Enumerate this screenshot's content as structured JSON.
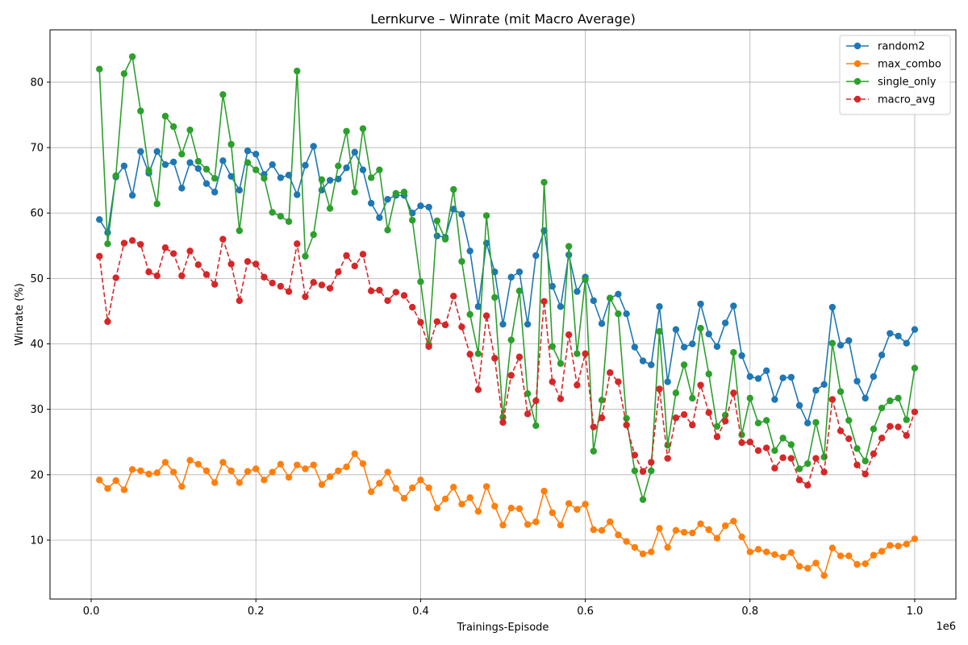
{
  "chart_data": {
    "type": "line",
    "title": "Lernkurve – Winrate (mit Macro Average)",
    "xlabel": "Trainings-Episode",
    "ylabel": "Winrate (%)",
    "x_offset_label": "1e6",
    "xlim": [
      -0.05,
      1.05
    ],
    "ylim": [
      1,
      88
    ],
    "xticks": [
      0.0,
      0.2,
      0.4,
      0.6,
      0.8,
      1.0
    ],
    "xtick_labels": [
      "0.0",
      "0.2",
      "0.4",
      "0.6",
      "0.8",
      "1.0"
    ],
    "yticks": [
      10,
      20,
      30,
      40,
      50,
      60,
      70,
      80
    ],
    "ytick_labels": [
      "10",
      "20",
      "30",
      "40",
      "50",
      "60",
      "70",
      "80"
    ],
    "grid": true,
    "legend_position": "top-right",
    "x": [
      0.01,
      0.02,
      0.03,
      0.04,
      0.05,
      0.06,
      0.07,
      0.08,
      0.09,
      0.1,
      0.11,
      0.12,
      0.13,
      0.14,
      0.15,
      0.16,
      0.17,
      0.18,
      0.19,
      0.2,
      0.21,
      0.22,
      0.23,
      0.24,
      0.25,
      0.26,
      0.27,
      0.28,
      0.29,
      0.3,
      0.31,
      0.32,
      0.33,
      0.34,
      0.35,
      0.36,
      0.37,
      0.38,
      0.39,
      0.4,
      0.41,
      0.42,
      0.43,
      0.44,
      0.45,
      0.46,
      0.47,
      0.48,
      0.49,
      0.5,
      0.51,
      0.52,
      0.53,
      0.54,
      0.55,
      0.56,
      0.57,
      0.58,
      0.59,
      0.6,
      0.61,
      0.62,
      0.63,
      0.64,
      0.65,
      0.66,
      0.67,
      0.68,
      0.69,
      0.7,
      0.71,
      0.72,
      0.73,
      0.74,
      0.75,
      0.76,
      0.77,
      0.78,
      0.79,
      0.8,
      0.81,
      0.82,
      0.83,
      0.84,
      0.85,
      0.86,
      0.87,
      0.88,
      0.89,
      0.9,
      0.91,
      0.92,
      0.93,
      0.94,
      0.95,
      0.96,
      0.97,
      0.98,
      0.99,
      1.0
    ],
    "series": [
      {
        "name": "random2",
        "color": "#1f77b4",
        "dashed": false,
        "values": [
          59.0,
          57.0,
          65.5,
          67.2,
          62.7,
          69.4,
          66.1,
          69.4,
          67.4,
          67.8,
          63.8,
          67.7,
          66.8,
          64.5,
          63.2,
          68.0,
          65.6,
          63.5,
          69.5,
          69.0,
          65.9,
          67.4,
          65.4,
          65.8,
          62.8,
          67.3,
          70.2,
          63.5,
          65.0,
          65.2,
          66.9,
          69.3,
          66.6,
          61.5,
          59.3,
          62.1,
          62.7,
          62.7,
          60.0,
          61.1,
          60.9,
          56.5,
          56.3,
          60.6,
          59.8,
          54.2,
          45.7,
          55.4,
          51.0,
          43.0,
          50.2,
          51.0,
          43.0,
          53.5,
          57.3,
          48.8,
          45.7,
          53.6,
          48.0,
          50.2,
          46.6,
          43.1,
          47.0,
          47.6,
          44.6,
          39.5,
          37.4,
          36.8,
          45.7,
          34.2,
          42.2,
          39.5,
          40.0,
          46.1,
          41.5,
          39.6,
          43.2,
          45.8,
          38.2,
          35.0,
          34.7,
          35.9,
          31.5,
          34.8,
          34.9,
          30.6,
          27.9,
          32.9,
          33.8,
          45.6,
          39.8,
          40.5,
          34.3,
          31.7,
          35.0,
          38.3,
          41.6,
          41.2,
          40.1,
          42.2
        ]
      },
      {
        "name": "max_combo",
        "color": "#ff7f0e",
        "dashed": false,
        "values": [
          19.2,
          17.9,
          19.1,
          17.7,
          20.8,
          20.6,
          20.1,
          20.3,
          21.9,
          20.4,
          18.2,
          22.2,
          21.6,
          20.6,
          18.8,
          21.9,
          20.6,
          18.8,
          20.5,
          20.9,
          19.2,
          20.4,
          21.6,
          19.6,
          21.5,
          20.9,
          21.5,
          18.5,
          19.7,
          20.6,
          21.2,
          23.2,
          21.7,
          17.4,
          18.7,
          20.4,
          17.9,
          16.4,
          18.0,
          19.2,
          18.0,
          14.9,
          16.3,
          18.1,
          15.5,
          16.5,
          14.4,
          18.2,
          15.2,
          12.3,
          14.9,
          14.8,
          12.4,
          12.8,
          17.5,
          14.2,
          12.3,
          15.6,
          14.7,
          15.5,
          11.6,
          11.5,
          12.8,
          10.8,
          9.8,
          8.9,
          7.9,
          8.2,
          11.8,
          8.9,
          11.5,
          11.2,
          11.1,
          12.5,
          11.6,
          10.3,
          12.2,
          12.9,
          10.5,
          8.2,
          8.6,
          8.2,
          7.8,
          7.4,
          8.1,
          6.0,
          5.7,
          6.5,
          4.6,
          8.8,
          7.6,
          7.6,
          6.3,
          6.4,
          7.7,
          8.3,
          9.2,
          9.1,
          9.4,
          10.2
        ]
      },
      {
        "name": "single_only",
        "color": "#2ca02c",
        "dashed": false,
        "values": [
          82.0,
          55.3,
          65.7,
          81.3,
          83.9,
          75.6,
          66.5,
          61.4,
          74.8,
          73.2,
          69.0,
          72.7,
          67.9,
          66.7,
          65.3,
          78.1,
          70.5,
          57.3,
          67.7,
          66.6,
          65.3,
          60.1,
          59.5,
          58.7,
          81.7,
          53.4,
          56.7,
          65.1,
          60.7,
          67.2,
          72.5,
          63.2,
          72.9,
          65.4,
          66.6,
          57.4,
          63.0,
          63.2,
          58.9,
          49.5,
          39.9,
          58.8,
          56.0,
          63.6,
          52.6,
          44.5,
          38.5,
          59.6,
          47.1,
          28.8,
          40.6,
          48.1,
          32.4,
          27.5,
          64.7,
          39.6,
          37.0,
          54.9,
          38.5,
          49.8,
          23.6,
          31.4,
          47.0,
          44.6,
          28.6,
          20.6,
          16.2,
          20.6,
          41.9,
          24.5,
          32.5,
          36.8,
          31.7,
          42.4,
          35.4,
          27.4,
          29.1,
          38.7,
          26.1,
          31.7,
          27.9,
          28.3,
          23.7,
          25.6,
          24.6,
          20.9,
          21.7,
          28.0,
          22.7,
          40.1,
          32.7,
          28.3,
          24.0,
          22.1,
          27.0,
          30.2,
          31.3,
          31.7,
          28.4,
          36.3
        ]
      },
      {
        "name": "macro_avg",
        "color": "#d62728",
        "dashed": true,
        "values": [
          53.4,
          43.4,
          50.1,
          55.4,
          55.8,
          55.2,
          51.0,
          50.4,
          54.7,
          53.8,
          50.4,
          54.2,
          52.1,
          50.6,
          49.1,
          56.0,
          52.2,
          46.6,
          52.6,
          52.2,
          50.2,
          49.3,
          48.8,
          48.0,
          55.3,
          47.2,
          49.4,
          49.0,
          48.5,
          51.0,
          53.5,
          51.9,
          53.7,
          48.1,
          48.2,
          46.6,
          47.9,
          47.4,
          45.6,
          43.3,
          39.6,
          43.4,
          42.9,
          47.3,
          42.6,
          38.4,
          33.0,
          44.3,
          37.8,
          28.0,
          35.2,
          38.0,
          29.3,
          31.3,
          46.5,
          34.2,
          31.6,
          41.4,
          33.7,
          38.5,
          27.3,
          28.7,
          35.6,
          34.2,
          27.6,
          23.0,
          20.5,
          21.9,
          33.1,
          22.5,
          28.7,
          29.2,
          27.6,
          33.7,
          29.5,
          25.8,
          28.2,
          32.5,
          24.9,
          25.0,
          23.7,
          24.1,
          21.0,
          22.6,
          22.5,
          19.2,
          18.4,
          22.5,
          20.4,
          31.5,
          26.7,
          25.5,
          21.5,
          20.1,
          23.2,
          25.6,
          27.4,
          27.3,
          26.0,
          29.6
        ]
      }
    ]
  }
}
